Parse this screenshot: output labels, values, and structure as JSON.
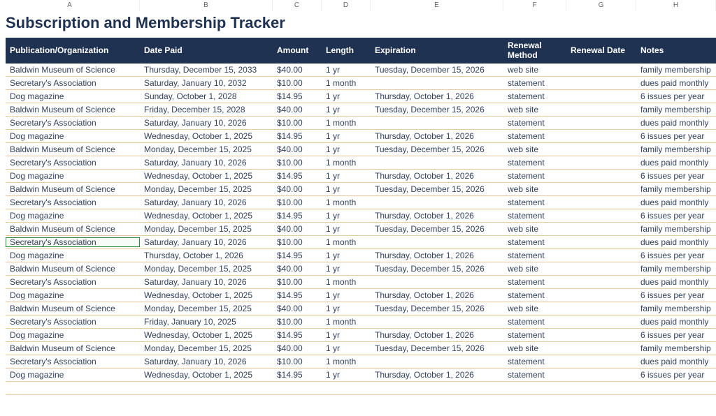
{
  "title": "Subscription and Membership Tracker",
  "columnLetters": [
    "A",
    "B",
    "C",
    "D",
    "E",
    "F",
    "G",
    "H"
  ],
  "headers": {
    "org": "Publication/Organization",
    "datePaid": "Date Paid",
    "amount": "Amount",
    "length": "Length",
    "expiration": "Expiration",
    "renewalMethod": "Renewal Method",
    "renewalDate": "Renewal Date",
    "notes": "Notes"
  },
  "selectedRowIndex": 13,
  "colors": {
    "headerBg": "#1f3251",
    "headerText": "#ffffff",
    "titleText": "#1f3251",
    "rowText": "#33415c",
    "rowBorder": "#e8c9a0",
    "selectedOutline": "#2a8a3a"
  },
  "rows": [
    {
      "org": "Baldwin Museum of Science",
      "datePaid": "Thursday, December 15, 2033",
      "amount": "$40.00",
      "length": "1 yr",
      "expiration": "Tuesday, December 15, 2026",
      "renewalMethod": "web site",
      "renewalDate": "",
      "notes": "family membership"
    },
    {
      "org": "Secretary's Association",
      "datePaid": "Saturday, January 10, 2032",
      "amount": "$10.00",
      "length": "1 month",
      "expiration": "",
      "renewalMethod": "statement",
      "renewalDate": "",
      "notes": "dues paid monthly"
    },
    {
      "org": "Dog magazine",
      "datePaid": "Sunday, October 1, 2028",
      "amount": "$14.95",
      "length": "1 yr",
      "expiration": "Thursday, October 1, 2026",
      "renewalMethod": "statement",
      "renewalDate": "",
      "notes": "6 issues per year"
    },
    {
      "org": "Baldwin Museum of Science",
      "datePaid": "Friday, December 15, 2028",
      "amount": "$40.00",
      "length": "1 yr",
      "expiration": "Tuesday, December 15, 2026",
      "renewalMethod": "web site",
      "renewalDate": "",
      "notes": "family membership"
    },
    {
      "org": "Secretary's Association",
      "datePaid": "Saturday, January 10, 2026",
      "amount": "$10.00",
      "length": "1 month",
      "expiration": "",
      "renewalMethod": "statement",
      "renewalDate": "",
      "notes": "dues paid monthly"
    },
    {
      "org": "Dog magazine",
      "datePaid": "Wednesday, October 1, 2025",
      "amount": "$14.95",
      "length": "1 yr",
      "expiration": "Thursday, October 1, 2026",
      "renewalMethod": "statement",
      "renewalDate": "",
      "notes": "6 issues per year"
    },
    {
      "org": "Baldwin Museum of Science",
      "datePaid": "Monday, December 15, 2025",
      "amount": "$40.00",
      "length": "1 yr",
      "expiration": "Tuesday, December 15, 2026",
      "renewalMethod": "web site",
      "renewalDate": "",
      "notes": "family membership"
    },
    {
      "org": "Secretary's Association",
      "datePaid": "Saturday, January 10, 2026",
      "amount": "$10.00",
      "length": "1 month",
      "expiration": "",
      "renewalMethod": "statement",
      "renewalDate": "",
      "notes": "dues paid monthly"
    },
    {
      "org": "Dog magazine",
      "datePaid": "Wednesday, October 1, 2025",
      "amount": "$14.95",
      "length": "1 yr",
      "expiration": "Thursday, October 1, 2026",
      "renewalMethod": "statement",
      "renewalDate": "",
      "notes": "6 issues per year"
    },
    {
      "org": "Baldwin Museum of Science",
      "datePaid": "Monday, December 15, 2025",
      "amount": "$40.00",
      "length": "1 yr",
      "expiration": "Tuesday, December 15, 2026",
      "renewalMethod": "web site",
      "renewalDate": "",
      "notes": "family membership"
    },
    {
      "org": "Secretary's Association",
      "datePaid": "Saturday, January 10, 2026",
      "amount": "$10.00",
      "length": "1 month",
      "expiration": "",
      "renewalMethod": "statement",
      "renewalDate": "",
      "notes": "dues paid monthly"
    },
    {
      "org": "Dog magazine",
      "datePaid": "Wednesday, October 1, 2025",
      "amount": "$14.95",
      "length": "1 yr",
      "expiration": "Thursday, October 1, 2026",
      "renewalMethod": "statement",
      "renewalDate": "",
      "notes": "6 issues per year"
    },
    {
      "org": "Baldwin Museum of Science",
      "datePaid": "Monday, December 15, 2025",
      "amount": "$40.00",
      "length": "1 yr",
      "expiration": "Tuesday, December 15, 2026",
      "renewalMethod": "web site",
      "renewalDate": "",
      "notes": "family membership"
    },
    {
      "org": "Secretary's Association",
      "datePaid": "Saturday, January 10, 2026",
      "amount": "$10.00",
      "length": "1 month",
      "expiration": "",
      "renewalMethod": "statement",
      "renewalDate": "",
      "notes": "dues paid monthly"
    },
    {
      "org": "Dog magazine",
      "datePaid": "Thursday, October 1, 2026",
      "amount": "$14.95",
      "length": "1 yr",
      "expiration": "Thursday, October 1, 2026",
      "renewalMethod": "statement",
      "renewalDate": "",
      "notes": "6 issues per year"
    },
    {
      "org": "Baldwin Museum of Science",
      "datePaid": "Monday, December 15, 2025",
      "amount": "$40.00",
      "length": "1 yr",
      "expiration": "Tuesday, December 15, 2026",
      "renewalMethod": "web site",
      "renewalDate": "",
      "notes": "family membership"
    },
    {
      "org": "Secretary's Association",
      "datePaid": "Saturday, January 10, 2026",
      "amount": "$10.00",
      "length": "1 month",
      "expiration": "",
      "renewalMethod": "statement",
      "renewalDate": "",
      "notes": "dues paid monthly"
    },
    {
      "org": "Dog magazine",
      "datePaid": "Wednesday, October 1, 2025",
      "amount": "$14.95",
      "length": "1 yr",
      "expiration": "Thursday, October 1, 2026",
      "renewalMethod": "statement",
      "renewalDate": "",
      "notes": "6 issues per year"
    },
    {
      "org": "Baldwin Museum of Science",
      "datePaid": "Monday, December 15, 2025",
      "amount": "$40.00",
      "length": "1 yr",
      "expiration": "Tuesday, December 15, 2026",
      "renewalMethod": "web site",
      "renewalDate": "",
      "notes": "family membership"
    },
    {
      "org": "Secretary's Association",
      "datePaid": "Friday, January 10, 2025",
      "amount": "$10.00",
      "length": "1 month",
      "expiration": "",
      "renewalMethod": "statement",
      "renewalDate": "",
      "notes": "dues paid monthly"
    },
    {
      "org": "Dog magazine",
      "datePaid": "Wednesday, October 1, 2025",
      "amount": "$14.95",
      "length": "1 yr",
      "expiration": "Thursday, October 1, 2026",
      "renewalMethod": "statement",
      "renewalDate": "",
      "notes": "6 issues per year"
    },
    {
      "org": "Baldwin Museum of Science",
      "datePaid": "Monday, December 15, 2025",
      "amount": "$40.00",
      "length": "1 yr",
      "expiration": "Tuesday, December 15, 2026",
      "renewalMethod": "web site",
      "renewalDate": "",
      "notes": "family membership"
    },
    {
      "org": "Secretary's Association",
      "datePaid": "Saturday, January 10, 2026",
      "amount": "$10.00",
      "length": "1 month",
      "expiration": "",
      "renewalMethod": "statement",
      "renewalDate": "",
      "notes": "dues paid monthly"
    },
    {
      "org": "Dog magazine",
      "datePaid": "Wednesday, October 1, 2025",
      "amount": "$14.95",
      "length": "1 yr",
      "expiration": "Thursday, October 1, 2026",
      "renewalMethod": "statement",
      "renewalDate": "",
      "notes": "6 issues per year"
    }
  ]
}
